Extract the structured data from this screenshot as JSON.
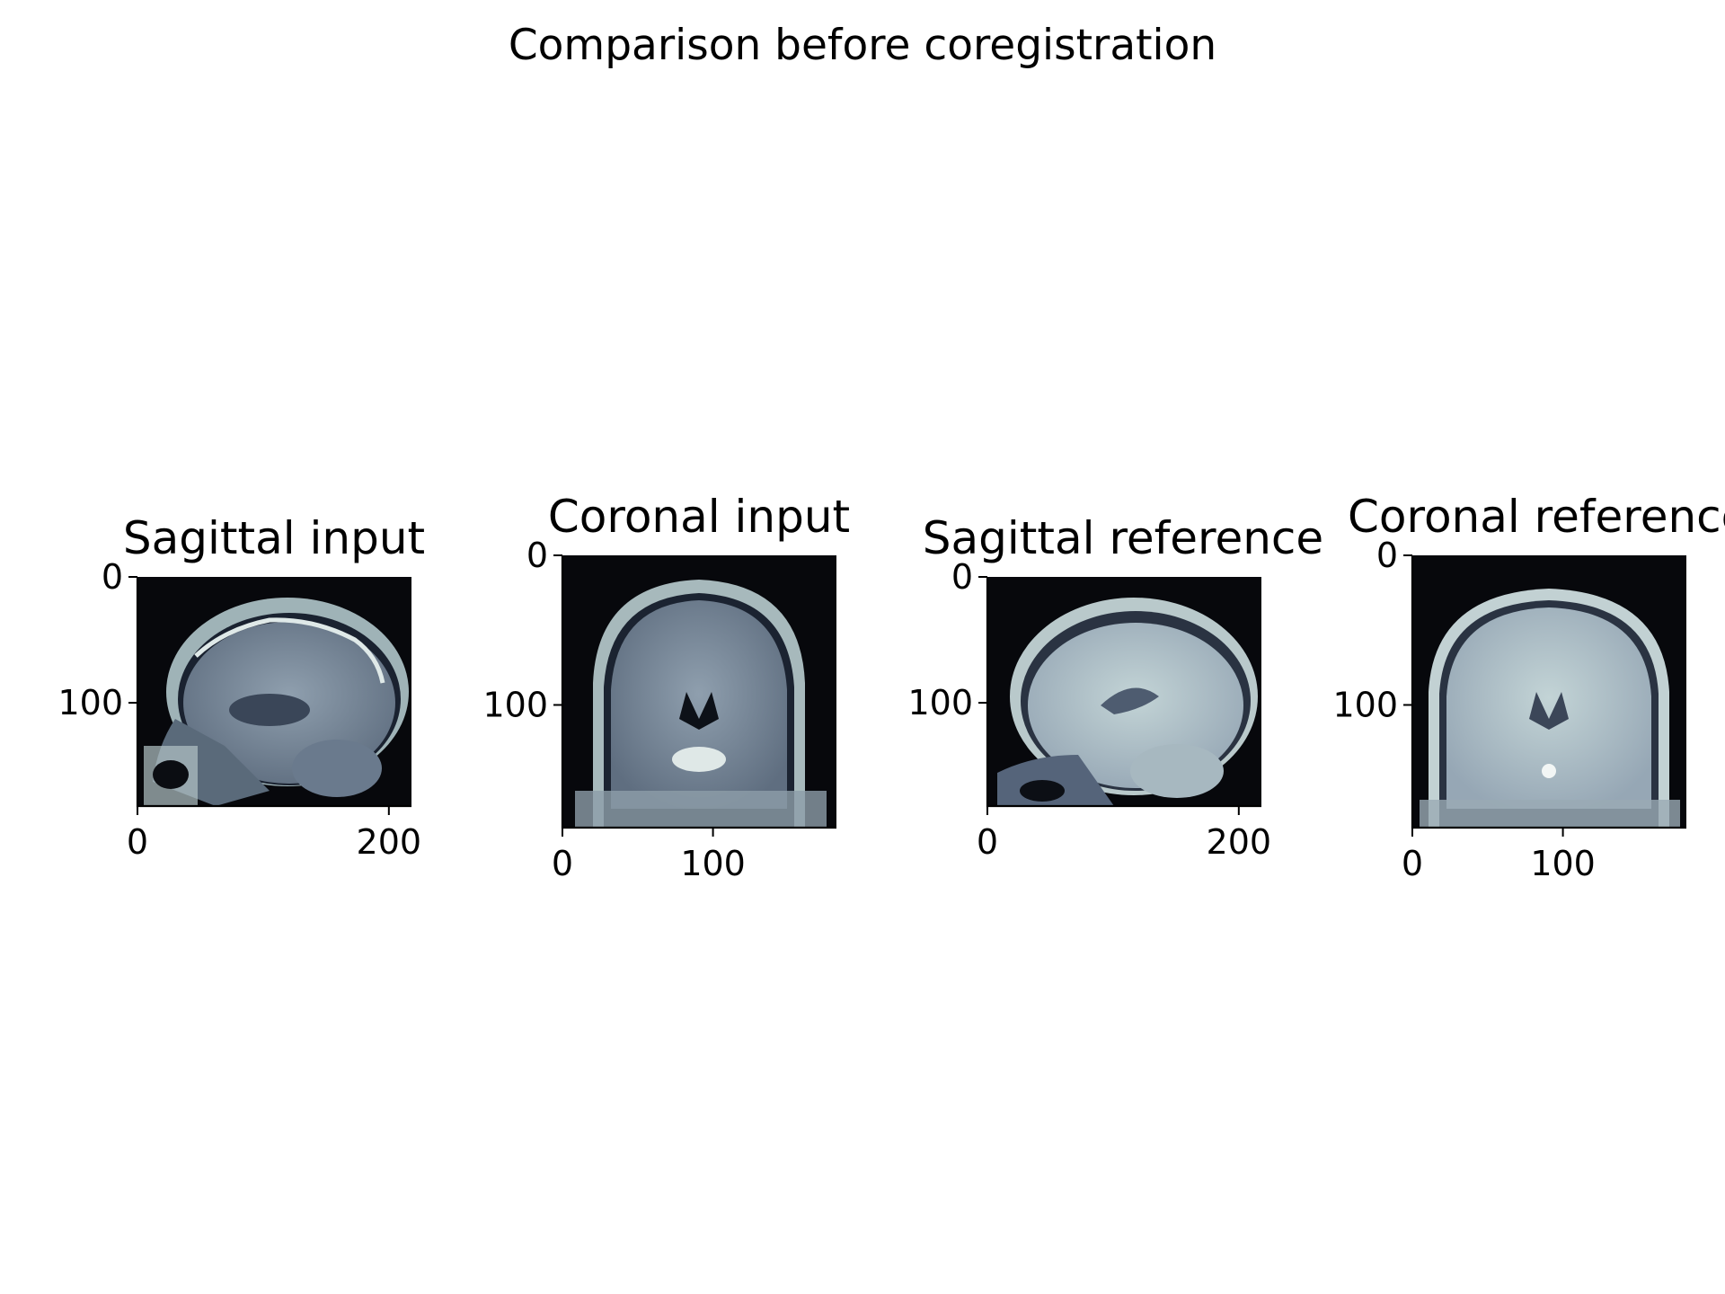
{
  "figure": {
    "title": "Comparison before coregistration",
    "colormap": "bone",
    "background": "#ffffff"
  },
  "panels": [
    {
      "title": "Sagittal input",
      "view": "sagittal",
      "source": "input",
      "image_width": 218,
      "image_height": 182,
      "x_ticks": [
        {
          "value": 0,
          "label": "0"
        },
        {
          "value": 200,
          "label": "200"
        }
      ],
      "y_ticks": [
        {
          "value": 0,
          "label": "0"
        },
        {
          "value": 100,
          "label": "100"
        }
      ]
    },
    {
      "title": "Coronal input",
      "view": "coronal",
      "source": "input",
      "image_width": 182,
      "image_height": 182,
      "x_ticks": [
        {
          "value": 0,
          "label": "0"
        },
        {
          "value": 100,
          "label": "100"
        }
      ],
      "y_ticks": [
        {
          "value": 0,
          "label": "0"
        },
        {
          "value": 100,
          "label": "100"
        }
      ]
    },
    {
      "title": "Sagittal reference",
      "view": "sagittal",
      "source": "reference",
      "image_width": 218,
      "image_height": 182,
      "x_ticks": [
        {
          "value": 0,
          "label": "0"
        },
        {
          "value": 200,
          "label": "200"
        }
      ],
      "y_ticks": [
        {
          "value": 0,
          "label": "0"
        },
        {
          "value": 100,
          "label": "100"
        }
      ]
    },
    {
      "title": "Coronal reference",
      "view": "coronal",
      "source": "reference",
      "image_width": 182,
      "image_height": 182,
      "x_ticks": [
        {
          "value": 0,
          "label": "0"
        },
        {
          "value": 100,
          "label": "100"
        }
      ],
      "y_ticks": [
        {
          "value": 0,
          "label": "0"
        },
        {
          "value": 100,
          "label": "100"
        }
      ]
    }
  ]
}
